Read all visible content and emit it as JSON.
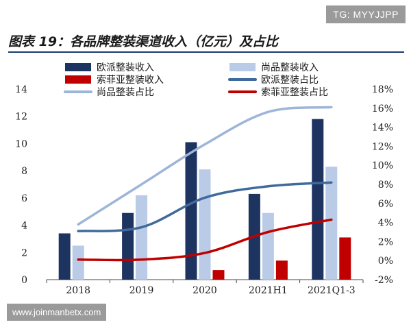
{
  "watermark_top": "TG: MYYJJPP",
  "title": "图表 19：各品牌整装渠道收入（亿元）及占比",
  "watermark_bottom": "www.joinmanbetx.com",
  "colors": {
    "oupai_rev": "#1d3461",
    "shangpin_rev": "#b9cbe6",
    "suofeiya_rev": "#c00000",
    "oupai_share": "#3f6a9b",
    "shangpin_share": "#9db5d8",
    "suofeiya_share": "#c00000"
  },
  "chart_data": {
    "type": "bar",
    "categories": [
      "2018",
      "2019",
      "2020",
      "2021H1",
      "2021Q1-3"
    ],
    "title": "",
    "left_axis": {
      "ylim": [
        0,
        14
      ],
      "ticks": [
        "0",
        "2",
        "4",
        "6",
        "8",
        "10",
        "12",
        "14"
      ]
    },
    "right_axis": {
      "ylim": [
        -2,
        18
      ],
      "ticks": [
        "-2%",
        "0%",
        "2%",
        "4%",
        "6%",
        "8%",
        "10%",
        "12%",
        "14%",
        "16%",
        "18%"
      ]
    },
    "bar_series": [
      {
        "name": "欧派整装收入",
        "values": [
          3.4,
          4.9,
          10.1,
          6.3,
          11.8
        ]
      },
      {
        "name": "尚品整装收入",
        "values": [
          2.5,
          6.2,
          8.1,
          4.9,
          8.3
        ]
      },
      {
        "name": "索菲亚整装收入",
        "values": [
          0,
          0,
          0.7,
          1.4,
          3.1
        ]
      }
    ],
    "line_series": [
      {
        "name": "欧派整装占比",
        "values": [
          3.1,
          3.5,
          6.6,
          7.8,
          8.2
        ]
      },
      {
        "name": "尚品整装占比",
        "values": [
          3.8,
          8.0,
          12.2,
          15.6,
          16.1
        ]
      },
      {
        "name": "索菲亚整装占比",
        "values": [
          0.1,
          0.1,
          0.8,
          3.0,
          4.3
        ]
      }
    ],
    "legend": [
      {
        "label": "欧派整装收入",
        "kind": "bar",
        "color_key": "oupai_rev"
      },
      {
        "label": "尚品整装收入",
        "kind": "bar",
        "color_key": "shangpin_rev"
      },
      {
        "label": "索菲亚整装收入",
        "kind": "bar",
        "color_key": "suofeiya_rev"
      },
      {
        "label": "欧派整装占比",
        "kind": "line",
        "color_key": "oupai_share"
      },
      {
        "label": "尚品整装占比",
        "kind": "line",
        "color_key": "shangpin_share"
      },
      {
        "label": "索菲亚整装占比",
        "kind": "line",
        "color_key": "suofeiya_share"
      }
    ],
    "legend_position": "top",
    "grid": false
  }
}
